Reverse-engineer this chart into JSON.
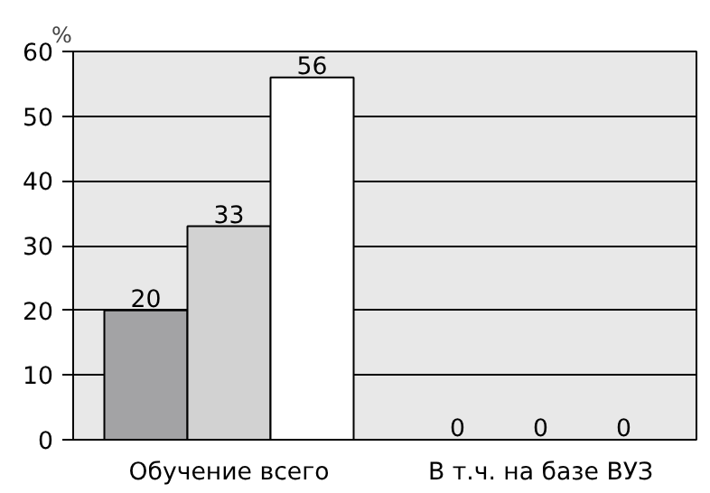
{
  "chart_data": {
    "type": "bar",
    "ylabel": "%",
    "categories": [
      "Обучение всего",
      "В т.ч. на базе ВУЗ"
    ],
    "series": [
      {
        "color": "#a3a3a5",
        "values": [
          20,
          0
        ]
      },
      {
        "color": "#d2d2d2",
        "values": [
          33,
          0
        ]
      },
      {
        "color": "#ffffff",
        "values": [
          56,
          0
        ]
      }
    ],
    "ylim": [
      0,
      60
    ],
    "yticks": [
      0,
      10,
      20,
      30,
      40,
      50,
      60
    ],
    "grid": "y",
    "data_labels": true
  }
}
